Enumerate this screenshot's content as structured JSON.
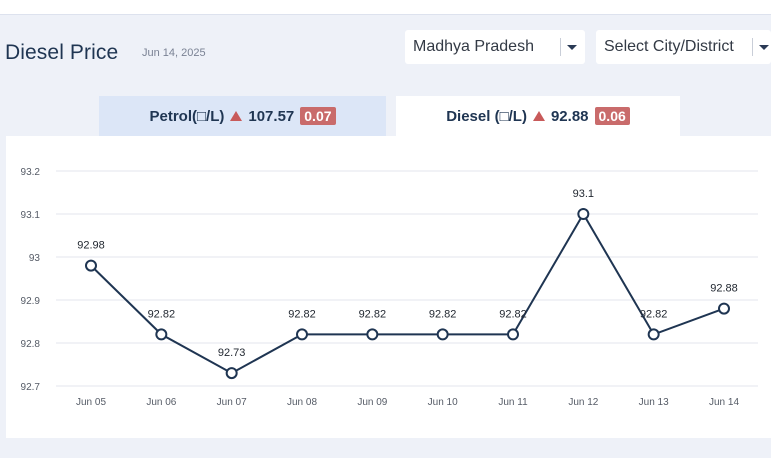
{
  "header": {
    "title": "Diesel Price",
    "date": "Jun 14, 2025",
    "state_select": {
      "value": "Madhya Pradesh",
      "icon": "chevron-down-icon"
    },
    "city_select": {
      "value": "Select City/District",
      "icon": "chevron-down-icon"
    }
  },
  "tabs": {
    "petrol": {
      "label": "Petrol(□/L)",
      "price": "107.57",
      "change": "0.07",
      "trend": "up"
    },
    "diesel": {
      "label": "Diesel (□/L)",
      "price": "92.88",
      "change": "0.06",
      "trend": "up"
    }
  },
  "colors": {
    "line": "#1f3552",
    "grid": "#e3e6ec",
    "up_arrow": "#c85a5a",
    "change_badge": "#c96b6b",
    "tab_active_bg": "#ffffff",
    "tab_inactive_bg": "#dce6f7"
  },
  "chart_data": {
    "type": "line",
    "title": "",
    "xlabel": "",
    "ylabel": "",
    "categories": [
      "Jun 05",
      "Jun 06",
      "Jun 07",
      "Jun 08",
      "Jun 09",
      "Jun 10",
      "Jun 11",
      "Jun 12",
      "Jun 13",
      "Jun 14"
    ],
    "series": [
      {
        "name": "Diesel",
        "values": [
          92.98,
          92.82,
          92.73,
          92.82,
          92.82,
          92.82,
          92.82,
          93.1,
          92.82,
          92.88
        ]
      }
    ],
    "data_labels": [
      "92.98",
      "92.82",
      "92.73",
      "92.82",
      "92.82",
      "92.82",
      "92.82",
      "93.1",
      "92.82",
      "92.88"
    ],
    "yticks": [
      92.7,
      92.8,
      92.9,
      93,
      93.1,
      93.2
    ],
    "ytick_labels": [
      "92.7",
      "92.8",
      "92.9",
      "93",
      "93.1",
      "93.2"
    ],
    "ylim": [
      92.7,
      93.2
    ],
    "grid": true
  }
}
